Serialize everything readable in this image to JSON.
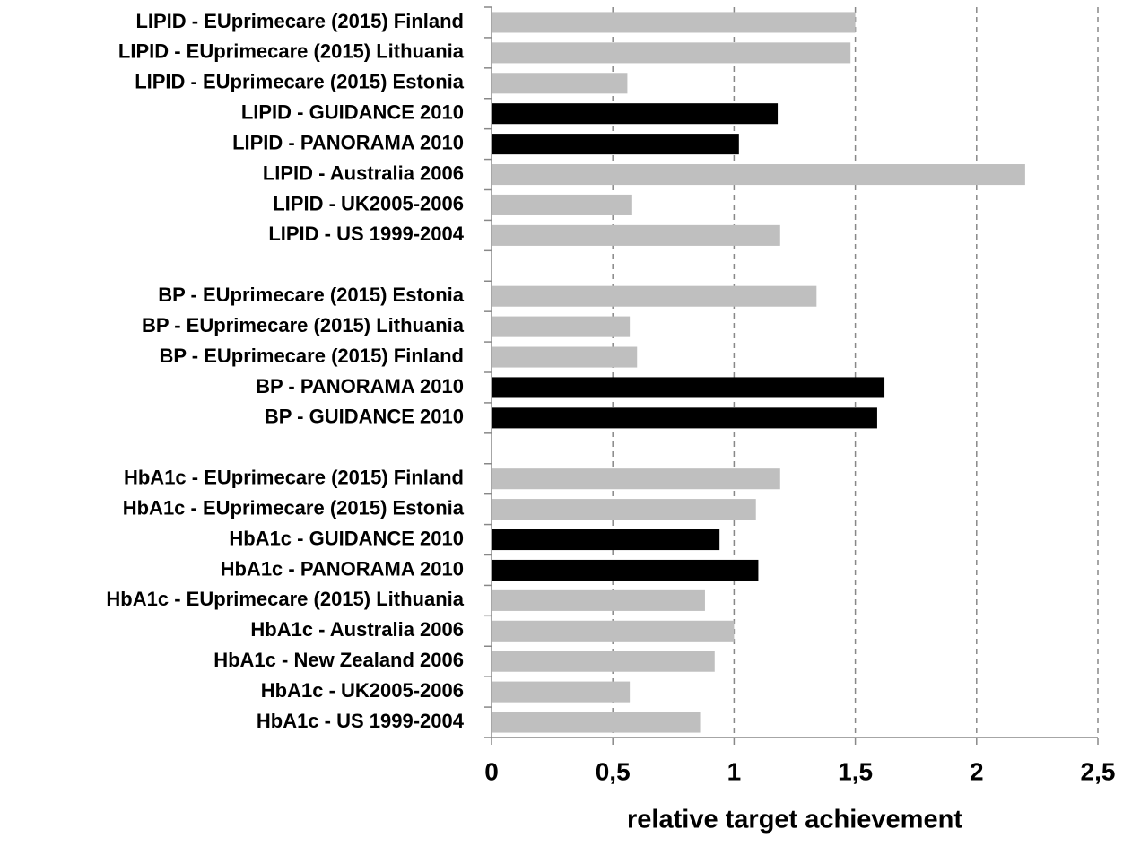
{
  "chart_data": {
    "type": "bar",
    "orientation": "horizontal",
    "x_label": "relative target achievement",
    "categories": [
      "LIPID - EUprimecare (2015) Finland",
      "LIPID - EUprimecare (2015) Lithuania",
      "LIPID - EUprimecare (2015) Estonia",
      "LIPID - GUIDANCE 2010",
      "LIPID - PANORAMA 2010",
      "LIPID - Australia 2006",
      "LIPID - UK2005-2006",
      "LIPID - US 1999-2004",
      null,
      "BP - EUprimecare (2015) Estonia",
      "BP - EUprimecare (2015) Lithuania",
      "BP - EUprimecare (2015) Finland",
      "BP - PANORAMA 2010",
      "BP - GUIDANCE 2010",
      null,
      "HbA1c - EUprimecare (2015) Finland",
      "HbA1c - EUprimecare (2015) Estonia",
      "HbA1c - GUIDANCE 2010",
      "HbA1c - PANORAMA 2010",
      "HbA1c - EUprimecare (2015) Lithuania",
      "HbA1c - Australia 2006",
      "HbA1c - New Zealand 2006",
      "HbA1c - UK2005-2006",
      "HbA1c - US 1999-2004"
    ],
    "values": [
      1.5,
      1.48,
      0.56,
      1.18,
      1.02,
      2.2,
      0.58,
      1.19,
      null,
      1.34,
      0.57,
      0.6,
      1.62,
      1.59,
      null,
      1.19,
      1.09,
      0.94,
      1.1,
      0.88,
      1.0,
      0.92,
      0.57,
      0.86
    ],
    "colors": [
      "#bfbfbf",
      "#bfbfbf",
      "#bfbfbf",
      "#000000",
      "#000000",
      "#bfbfbf",
      "#bfbfbf",
      "#bfbfbf",
      null,
      "#bfbfbf",
      "#bfbfbf",
      "#bfbfbf",
      "#000000",
      "#000000",
      null,
      "#bfbfbf",
      "#bfbfbf",
      "#000000",
      "#000000",
      "#bfbfbf",
      "#bfbfbf",
      "#bfbfbf",
      "#bfbfbf",
      "#bfbfbf"
    ],
    "xlim": [
      0,
      2.5
    ],
    "xticks": [
      0,
      {
        "value": 0.5,
        "label": "0,5"
      },
      1,
      {
        "value": 1.5,
        "label": "1,5"
      },
      2,
      {
        "value": 2.5,
        "label": "2,5"
      }
    ],
    "grid": true
  }
}
